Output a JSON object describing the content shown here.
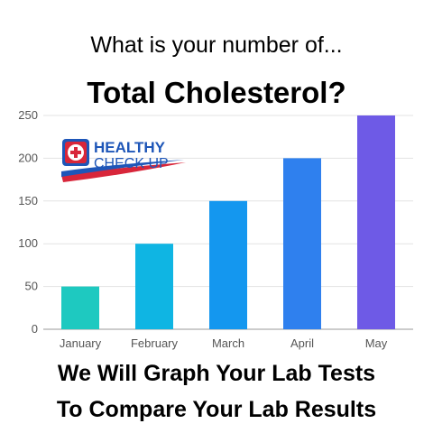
{
  "header": {
    "question": "What is your number of...",
    "title": "Total Cholesterol?"
  },
  "footer": {
    "line1": "We Will Graph Your Lab Tests",
    "line2": "To Compare Your Lab Results"
  },
  "logo": {
    "line1": "HEALTHY",
    "line2": "CHECK UP",
    "icon": "medical-cross-icon"
  },
  "chart_data": {
    "type": "bar",
    "categories": [
      "January",
      "February",
      "March",
      "April",
      "May"
    ],
    "values": [
      50,
      100,
      150,
      200,
      250
    ],
    "colors": [
      "#1ec9c0",
      "#0fb5e3",
      "#1497ef",
      "#2f80ee",
      "#6e5ae6"
    ],
    "ylim": [
      0,
      250
    ],
    "yticks": [
      0,
      50,
      100,
      150,
      200,
      250
    ],
    "grid": true,
    "legend": "none",
    "title": "",
    "xlabel": "",
    "ylabel": ""
  }
}
